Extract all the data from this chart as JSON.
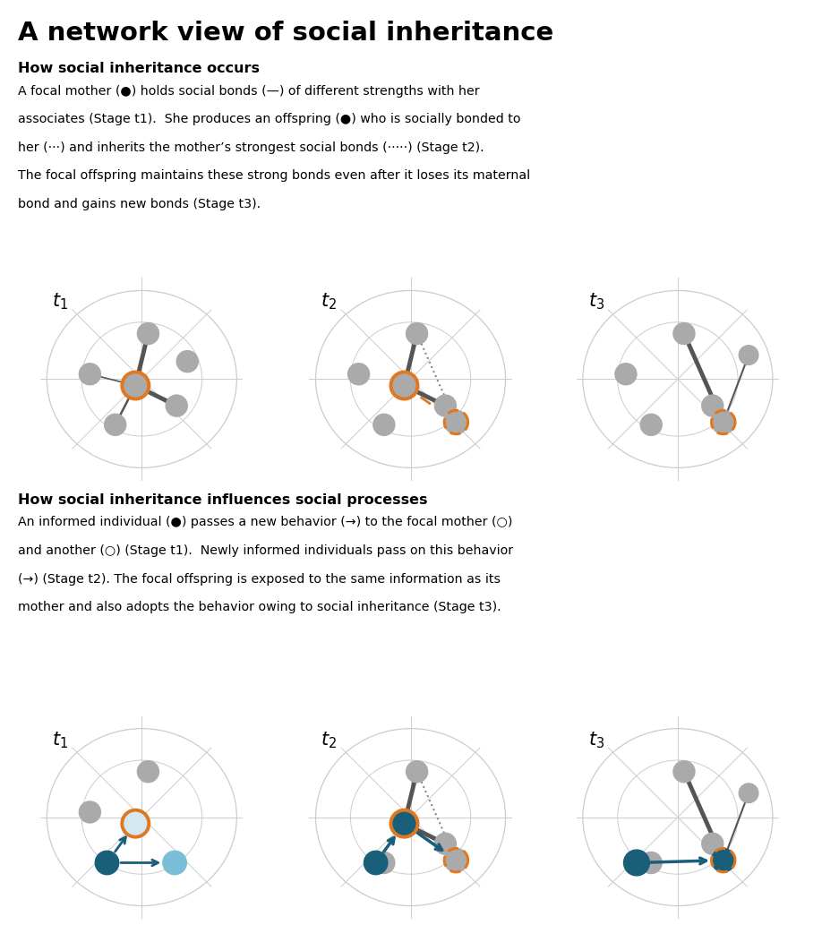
{
  "title": "A network view of social inheritance",
  "section1_title": "How social inheritance occurs",
  "section2_title": "How social inheritance influences social processes",
  "section1_lines": [
    "A focal mother (●) holds social bonds (—) of different strengths with her",
    "associates (Stage t1).  She produces an offspring (●) who is socially bonded to",
    "her (···) and inherits the mother’s strongest social bonds (·····) (Stage t2).",
    "The focal offspring maintains these strong bonds even after it loses its maternal",
    "bond and gains new bonds (Stage t3)."
  ],
  "section2_lines": [
    "An informed individual (●) passes a new behavior (→) to the focal mother (○)",
    "and another (○) (Stage t1).  Newly informed individuals pass on this behavior",
    "(→) (Stage t2). The focal offspring is exposed to the same information as its",
    "mother and also adopts the behavior owing to social inheritance (Stage t3)."
  ],
  "stage_labels": [
    "$t_1$",
    "$t_2$",
    "$t_3$"
  ],
  "gray": "#aaaaaa",
  "orange": "#e07820",
  "dark_teal": "#1a5f7a",
  "light_teal": "#7abdd6",
  "edge_strong": "#555555",
  "edge_light": "#888888",
  "bg": "#ffffff",
  "faint_line": "#cccccc"
}
